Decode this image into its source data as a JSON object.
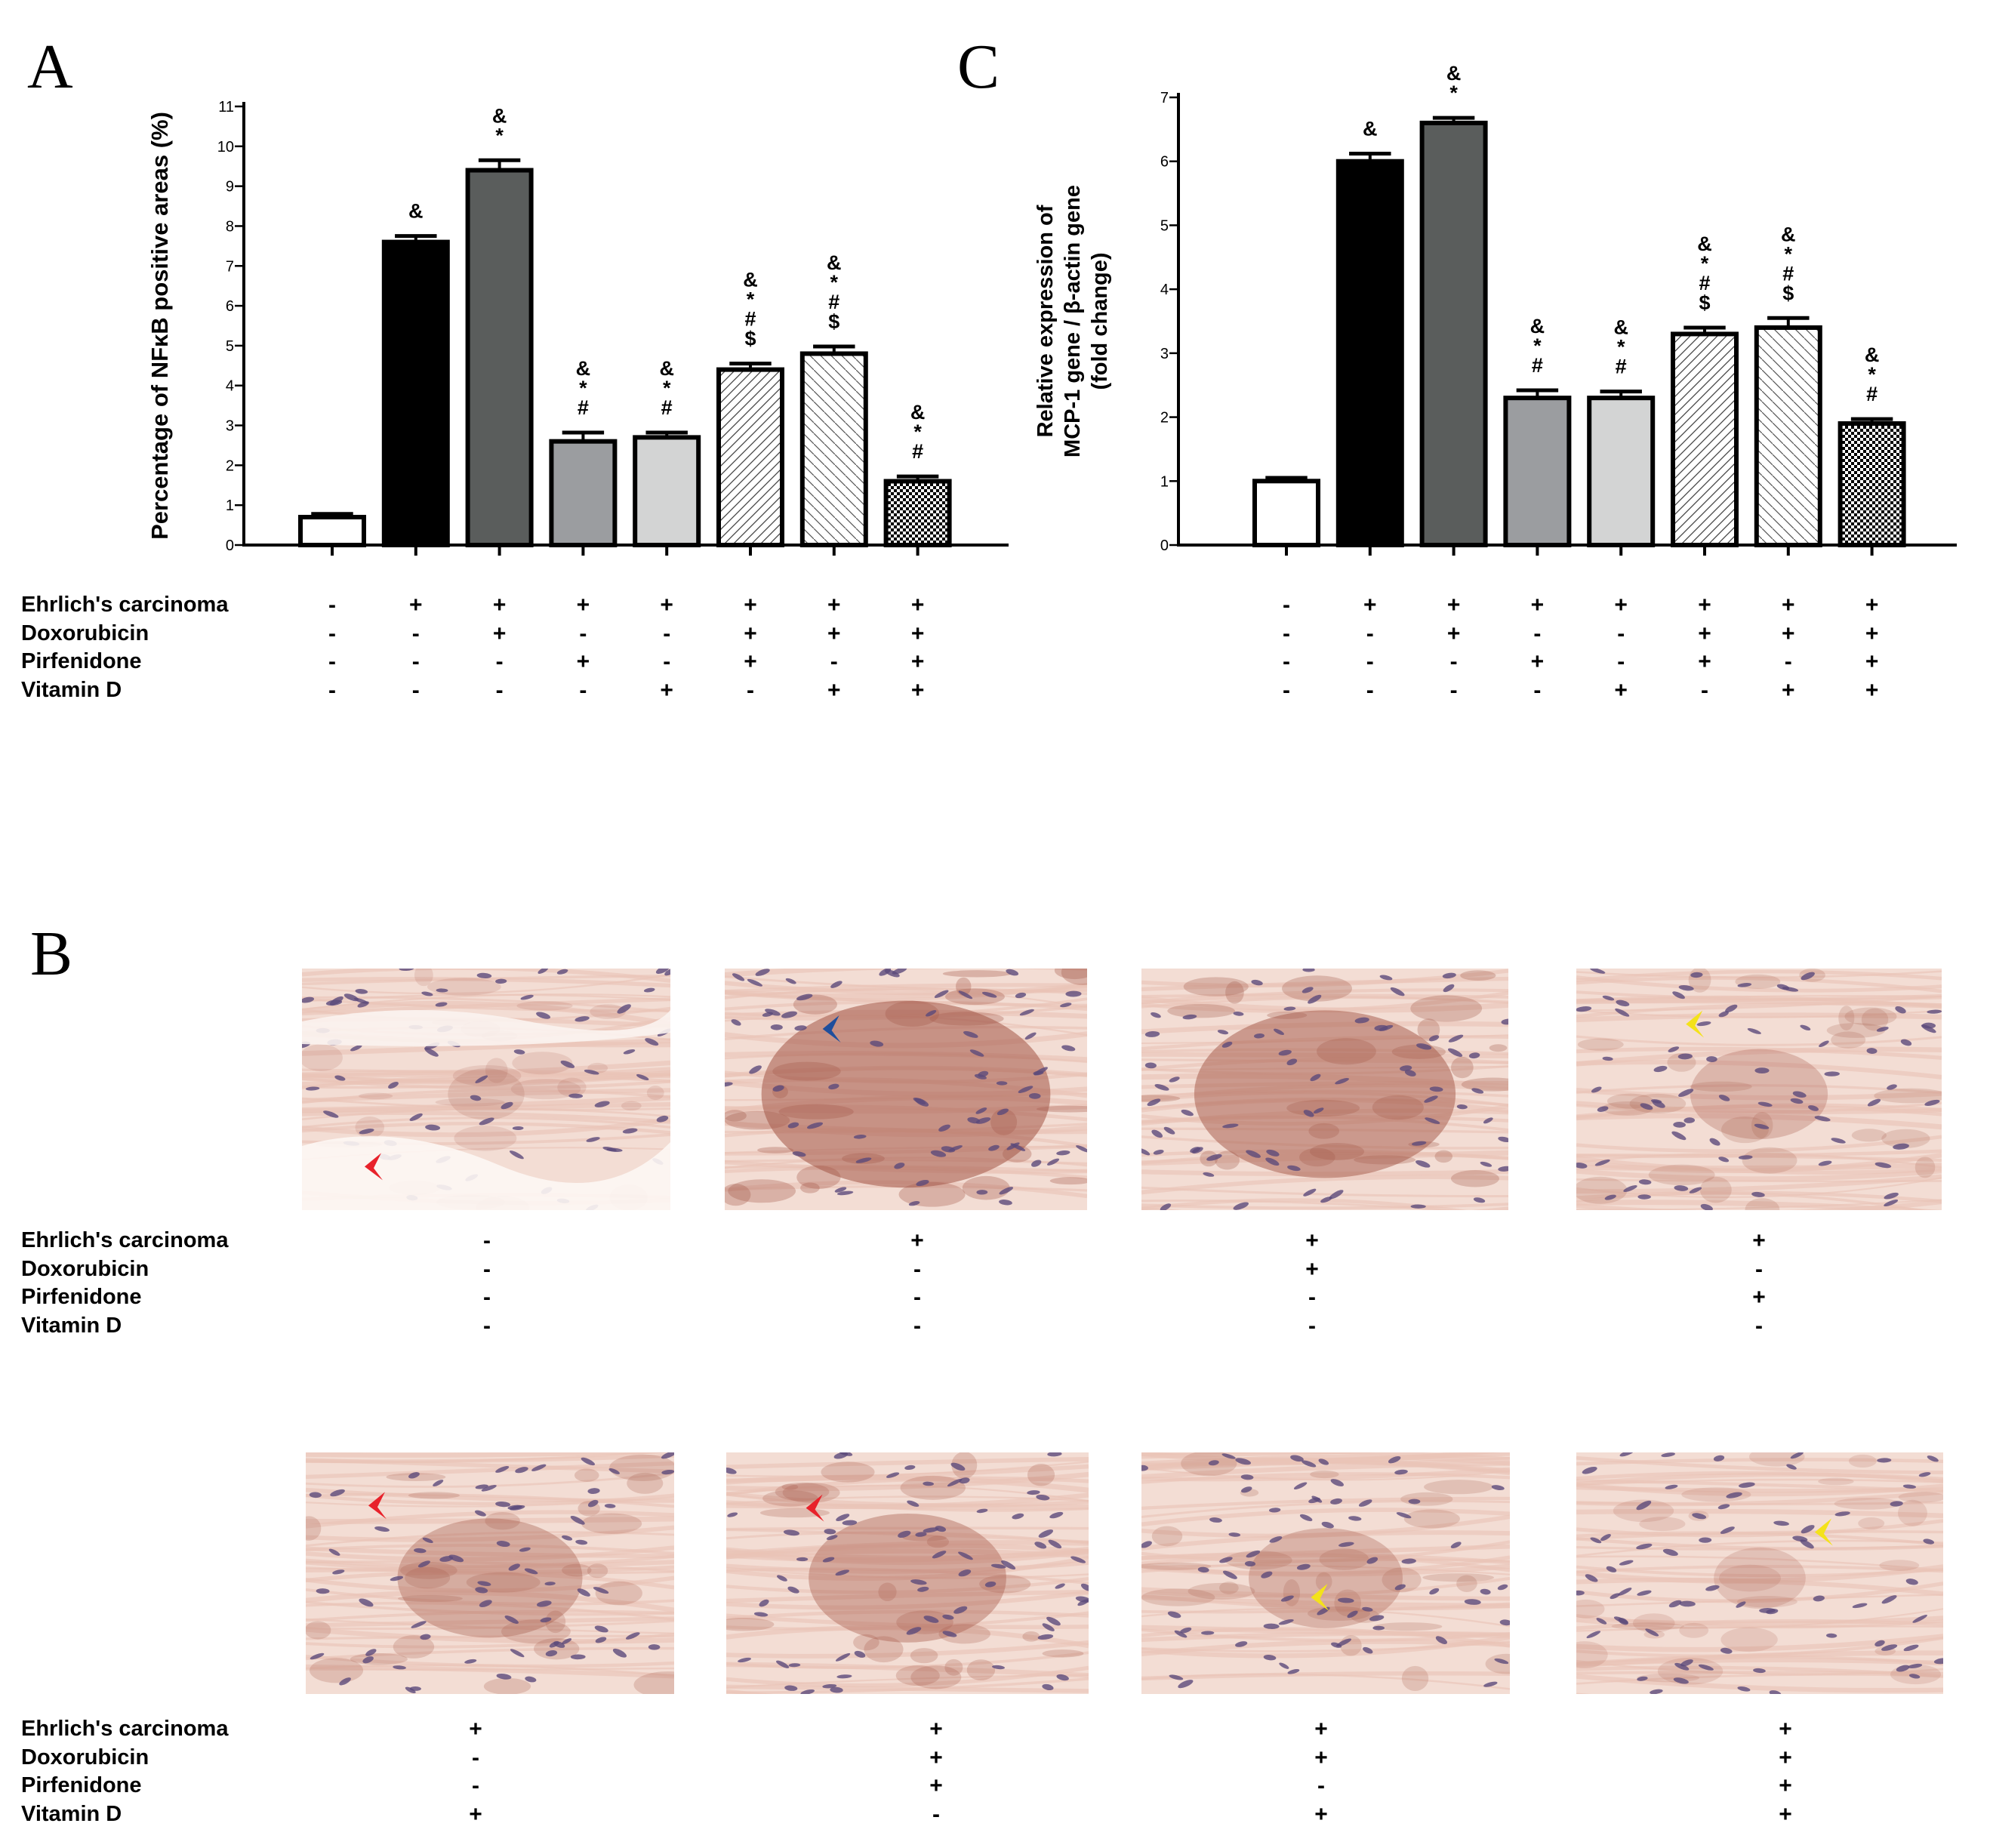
{
  "panels": {
    "a": "A",
    "b": "B",
    "c": "C"
  },
  "conditions": [
    "Ehrlich's carcinoma",
    "Doxorubicin",
    "Pirfenidone",
    "Vitamin D"
  ],
  "groups": [
    [
      "-",
      "-",
      "-",
      "-"
    ],
    [
      "+",
      "-",
      "-",
      "-"
    ],
    [
      "+",
      "+",
      "-",
      "-"
    ],
    [
      "+",
      "-",
      "+",
      "-"
    ],
    [
      "+",
      "-",
      "-",
      "+"
    ],
    [
      "+",
      "+",
      "+",
      "-"
    ],
    [
      "+",
      "+",
      "-",
      "+"
    ],
    [
      "+",
      "+",
      "+",
      "+"
    ]
  ],
  "chart_data": [
    {
      "panel": "A",
      "type": "bar",
      "ylabel": "Percentage of NFκB positive areas (%)",
      "ylim": [
        0,
        11
      ],
      "yticks": [
        0,
        1,
        2,
        3,
        4,
        5,
        6,
        7,
        8,
        9,
        10,
        11
      ],
      "values": [
        0.7,
        7.6,
        9.4,
        2.6,
        2.7,
        4.4,
        4.8,
        1.6
      ],
      "errors": [
        0.08,
        0.15,
        0.25,
        0.22,
        0.12,
        0.15,
        0.18,
        0.12
      ],
      "significance": [
        [],
        [
          "&"
        ],
        [
          "&",
          "*"
        ],
        [
          "&",
          "*",
          "#"
        ],
        [
          "&",
          "*",
          "#"
        ],
        [
          "&",
          "*",
          "#",
          "$"
        ],
        [
          "&",
          "*",
          "#",
          "$"
        ],
        [
          "&",
          "*",
          "#"
        ]
      ],
      "bar_fills": [
        "white",
        "black",
        "dark-gray",
        "gray",
        "light-gray",
        "hatch-right",
        "hatch-right-sparse",
        "checker"
      ]
    },
    {
      "panel": "C",
      "type": "bar",
      "ylabel": "Relative expression of MCP-1 gene / β-actin gene (fold change)",
      "ylabel_lines": [
        "Relative expression of",
        "MCP-1 gene / β-actin gene",
        "(fold change)"
      ],
      "ylim": [
        0,
        7
      ],
      "yticks": [
        0,
        1,
        2,
        3,
        4,
        5,
        6,
        7
      ],
      "values": [
        1.0,
        6.0,
        6.6,
        2.3,
        2.3,
        3.3,
        3.4,
        1.9
      ],
      "errors": [
        0.05,
        0.12,
        0.08,
        0.12,
        0.1,
        0.1,
        0.15,
        0.07
      ],
      "significance": [
        [],
        [
          "&"
        ],
        [
          "&",
          "*"
        ],
        [
          "&",
          "*",
          "#"
        ],
        [
          "&",
          "*",
          "#"
        ],
        [
          "&",
          "*",
          "#",
          "$"
        ],
        [
          "&",
          "*",
          "#",
          "$"
        ],
        [
          "&",
          "*",
          "#"
        ]
      ],
      "bar_fills": [
        "white",
        "black",
        "dark-gray",
        "gray",
        "light-gray",
        "hatch-right",
        "hatch-right-sparse",
        "checker"
      ]
    }
  ],
  "micrographs": [
    {
      "arrow": "red"
    },
    {
      "arrow": "blue"
    },
    {
      "arrow": "none"
    },
    {
      "arrow": "yellow"
    },
    {
      "arrow": "red"
    },
    {
      "arrow": "red"
    },
    {
      "arrow": "yellow"
    },
    {
      "arrow": "yellow"
    }
  ],
  "colors": {
    "bar_black": "#000000",
    "bar_dark_gray": "#5a5d5c",
    "bar_gray": "#9b9da0",
    "bar_light_gray": "#d3d4d4",
    "arrow_red": "#e8222b",
    "arrow_blue": "#1f4e9c",
    "arrow_yellow": "#f4e21a",
    "stain_brown": "#a55a4a",
    "tissue_pink": "#f3ddd4"
  }
}
